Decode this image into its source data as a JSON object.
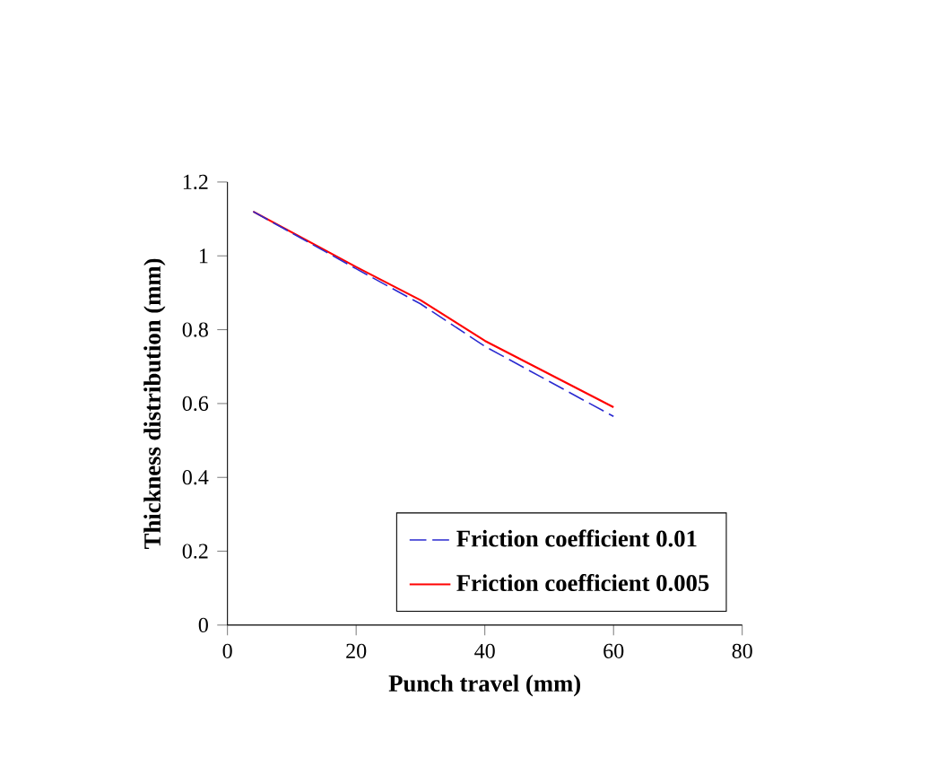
{
  "chart_data": {
    "type": "line",
    "xlabel": "Punch travel (mm)",
    "ylabel": "Thickness distribution (mm)",
    "xlim": [
      0,
      80
    ],
    "xticks": [
      0,
      20,
      40,
      60,
      80
    ],
    "ylim": [
      0,
      1.2
    ],
    "yticks": [
      0,
      0.2,
      0.4,
      0.6,
      0.8,
      1,
      1.2
    ],
    "legend": "bottom right",
    "marker": "none",
    "grid": false,
    "series": [
      {
        "name": "Friction coefficient 0.01",
        "color": "#2a2ad0",
        "line_style": "dashed",
        "x": [
          4,
          20,
          30,
          40,
          50,
          60
        ],
        "values": [
          1.12,
          0.965,
          0.87,
          0.755,
          0.66,
          0.565
        ]
      },
      {
        "name": "Friction coefficient 0.005",
        "color": "#ff0000",
        "line_style": "solid",
        "x": [
          4,
          20,
          30,
          40,
          50,
          60
        ],
        "values": [
          1.12,
          0.97,
          0.88,
          0.77,
          0.68,
          0.59
        ]
      }
    ]
  }
}
